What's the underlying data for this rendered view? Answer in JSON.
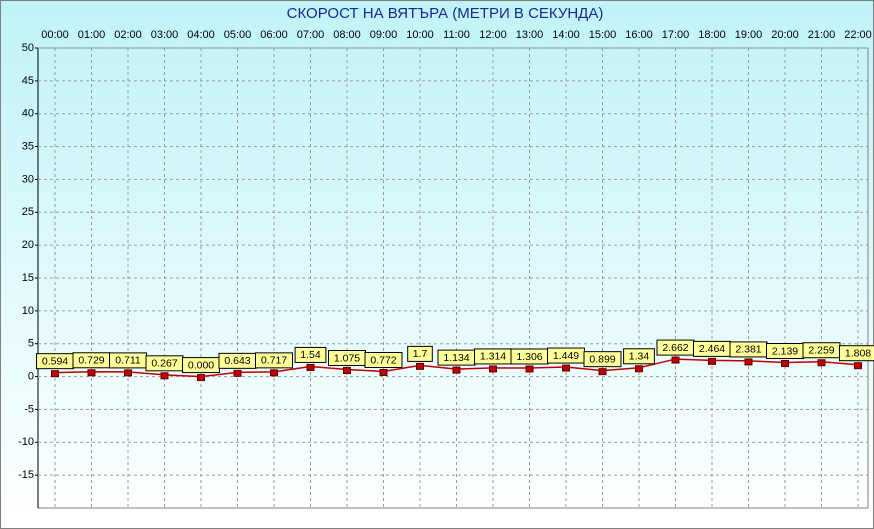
{
  "chart_data": {
    "type": "line",
    "title": "СКОРОСТ НА ВЯТЪРА (МЕТРИ В СЕКУНДА)",
    "categories": [
      "00:00",
      "01:00",
      "02:00",
      "03:00",
      "04:00",
      "05:00",
      "06:00",
      "07:00",
      "08:00",
      "09:00",
      "10:00",
      "11:00",
      "12:00",
      "13:00",
      "14:00",
      "15:00",
      "16:00",
      "17:00",
      "18:00",
      "19:00",
      "20:00",
      "21:00",
      "22:00"
    ],
    "values": [
      0.594,
      0.729,
      0.711,
      0.267,
      0,
      0.643,
      0.717,
      1.54,
      1.075,
      0.772,
      1.7,
      1.134,
      1.314,
      1.306,
      1.449,
      0.899,
      1.34,
      2.662,
      2.464,
      2.381,
      2.139,
      2.259,
      1.808
    ],
    "value_labels": [
      "0.594",
      "0.729",
      "0.711",
      "0.267",
      "0.000",
      "0.643",
      "0.717",
      "1.54",
      "1.075",
      "0.772",
      "1.7",
      "1.134",
      "1.314",
      "1.306",
      "1.449",
      "0.899",
      "1.34",
      "2.662",
      "2.464",
      "2.381",
      "2.139",
      "2.259",
      "1.808"
    ],
    "color": "#c00000",
    "ylim": [
      -20,
      50
    ],
    "yticks": [
      -15,
      -10,
      -5,
      0,
      5,
      10,
      15,
      20,
      25,
      30,
      35,
      40,
      45,
      50
    ],
    "grid": true
  }
}
